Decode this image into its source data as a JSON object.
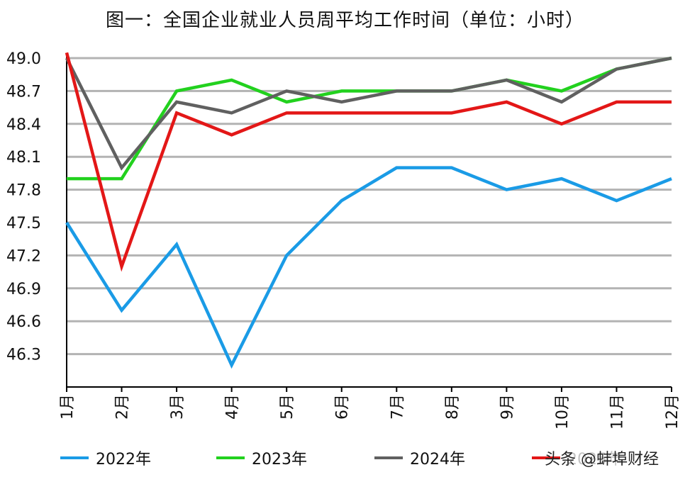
{
  "chart_data": {
    "type": "line",
    "title": "图一：全国企业就业人员周平均工作时间（单位：小时）",
    "categories": [
      "1月",
      "2月",
      "3月",
      "4月",
      "5月",
      "6月",
      "7月",
      "8月",
      "9月",
      "10月",
      "11月",
      "12月"
    ],
    "yticks": [
      "46.3",
      "46.6",
      "46.9",
      "47.2",
      "47.5",
      "47.8",
      "48.1",
      "48.4",
      "48.7",
      "49.0"
    ],
    "ylim": [
      46.0,
      49.0
    ],
    "grid": true,
    "legend_position": "bottom",
    "series": [
      {
        "name": "2022年",
        "color": "#1a9be6",
        "values": [
          47.5,
          46.7,
          47.3,
          46.2,
          47.2,
          47.7,
          48.0,
          48.0,
          47.8,
          47.9,
          47.7,
          47.9
        ]
      },
      {
        "name": "2023年",
        "color": "#22d11e",
        "values": [
          47.9,
          47.9,
          48.7,
          48.8,
          48.6,
          48.7,
          48.7,
          48.7,
          48.8,
          48.7,
          48.9,
          49.0
        ]
      },
      {
        "name": "2024年",
        "color": "#606060",
        "values": [
          49.0,
          48.0,
          48.6,
          48.5,
          48.7,
          48.6,
          48.7,
          48.7,
          48.8,
          48.6,
          48.9,
          49.0
        ]
      },
      {
        "name": "2025年",
        "color": "#e31717",
        "values": [
          49.05,
          47.1,
          48.5,
          48.3,
          48.5,
          48.5,
          48.5,
          48.5,
          48.6,
          48.4,
          48.6,
          48.6
        ]
      }
    ]
  },
  "watermark": "头条 @蚌埠财经"
}
